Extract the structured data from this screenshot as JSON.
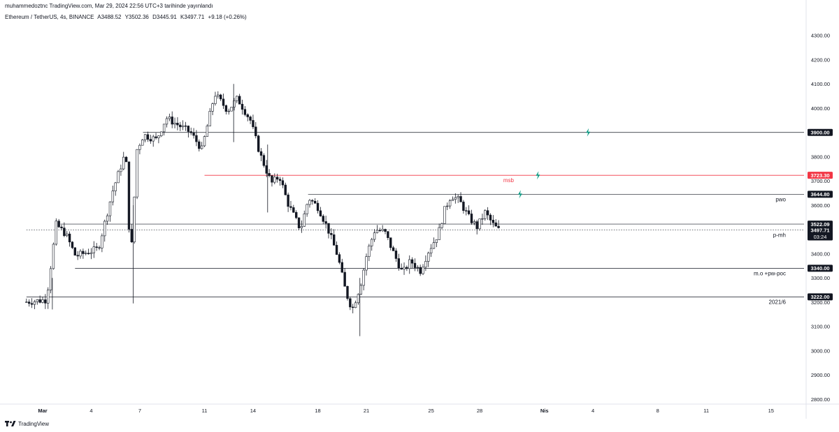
{
  "header": {
    "publish_info": "muhammedoztnc TradingView.com, Mar 29, 2024 22:56 UTC+3 tarihinde yayınlandı"
  },
  "symbol": {
    "name": "Ethereum / TetherUS, 4s, BINANCE",
    "open": "A3488.52",
    "high": "Y3502.36",
    "low": "D3445.91",
    "close": "K3497.71",
    "change": "+9.18 (+0.26%)"
  },
  "footer": {
    "brand": "TradingView"
  },
  "colors": {
    "candle": "#131722",
    "level_line": "#131722",
    "msb_line": "#f23645",
    "lightning": "#089981",
    "tag_bg": "#131722",
    "tag_red": "#f23645"
  },
  "icons": [
    "lightning-icon",
    "tradingview-logo-icon"
  ],
  "chart_data": {
    "type": "candlestick",
    "title": "Ethereum / TetherUS, 4s, BINANCE",
    "ylim": [
      2750,
      4350
    ],
    "y_ticks": [
      2800,
      2900,
      3000,
      3100,
      3200,
      3300,
      3400,
      3500,
      3600,
      3700,
      3800,
      3900,
      4000,
      4100,
      4200,
      4300
    ],
    "y_tick_labels": [
      "2800.00",
      "2900.00",
      "3000.00",
      "3100.00",
      "3200.00",
      "3300.00",
      "3400.00",
      "3500.00",
      "3600.00",
      "3700.00",
      "3800.00",
      "3900.00",
      "4000.00",
      "4100.00",
      "4200.00",
      "4300.00"
    ],
    "x_tick_labels": [
      "Mar",
      "4",
      "7",
      "11",
      "14",
      "18",
      "21",
      "25",
      "28",
      "Nis",
      "4",
      "8",
      "11",
      "15"
    ],
    "x_tick_days": [
      1,
      4,
      7,
      11,
      14,
      18,
      21,
      25,
      28,
      32,
      35,
      39,
      42,
      46
    ],
    "grid": false,
    "levels": [
      {
        "price": 3900.0,
        "tag": "3900.00",
        "label": "",
        "style": "dark"
      },
      {
        "price": 3723.3,
        "tag": "3723.30",
        "label": "msb",
        "style": "red"
      },
      {
        "price": 3644.8,
        "tag": "3644.80",
        "label": "pwo",
        "style": "dark"
      },
      {
        "price": 3522.09,
        "tag": "3522.09",
        "label": "",
        "style": "dark"
      },
      {
        "price": 3497.71,
        "tag": "3497.71",
        "label": "p-mh",
        "style": "current",
        "countdown": "03:24"
      },
      {
        "price": 3340.0,
        "tag": "3340.00",
        "label": "m.o +pw-poc",
        "style": "dark"
      },
      {
        "price": 3222.0,
        "tag": "3222.00",
        "label": "2021/6",
        "style": "dark"
      }
    ],
    "lightning_markers": [
      {
        "day": 34.7,
        "price": 3900
      },
      {
        "day": 31.6,
        "price": 3723
      },
      {
        "day": 30.5,
        "price": 3645
      }
    ],
    "candles_anchor_start": "2024-02-29",
    "candle_interval_hours": 4,
    "close_path": [
      [
        0,
        3200
      ],
      [
        1.4,
        3210
      ],
      [
        2,
        3520
      ],
      [
        2.6,
        3480
      ],
      [
        3.2,
        3390
      ],
      [
        4.6,
        3420
      ],
      [
        5.5,
        3660
      ],
      [
        6.3,
        3820
      ],
      [
        6.6,
        3360
      ],
      [
        7,
        3830
      ],
      [
        7.4,
        3890
      ],
      [
        8.2,
        3870
      ],
      [
        8.8,
        3960
      ],
      [
        10.3,
        3900
      ],
      [
        11.0,
        3830
      ],
      [
        11.8,
        4060
      ],
      [
        12.6,
        3990
      ],
      [
        13.2,
        4040
      ],
      [
        14.0,
        3950
      ],
      [
        14.6,
        3810
      ],
      [
        15.3,
        3690
      ],
      [
        15.8,
        3720
      ],
      [
        16.3,
        3610
      ],
      [
        17.1,
        3500
      ],
      [
        17.6,
        3630
      ],
      [
        18.2,
        3590
      ],
      [
        18.8,
        3500
      ],
      [
        19.4,
        3390
      ],
      [
        19.9,
        3240
      ],
      [
        20.3,
        3170
      ],
      [
        20.8,
        3270
      ],
      [
        21.2,
        3400
      ],
      [
        21.7,
        3500
      ],
      [
        22.3,
        3490
      ],
      [
        22.8,
        3410
      ],
      [
        23.4,
        3320
      ],
      [
        23.9,
        3370
      ],
      [
        24.5,
        3330
      ],
      [
        25.0,
        3410
      ],
      [
        25.6,
        3480
      ],
      [
        26.0,
        3580
      ],
      [
        26.4,
        3640
      ],
      [
        26.9,
        3620
      ],
      [
        27.5,
        3550
      ],
      [
        28.0,
        3510
      ],
      [
        28.5,
        3570
      ],
      [
        29.0,
        3520
      ],
      [
        29.3,
        3498
      ]
    ]
  }
}
